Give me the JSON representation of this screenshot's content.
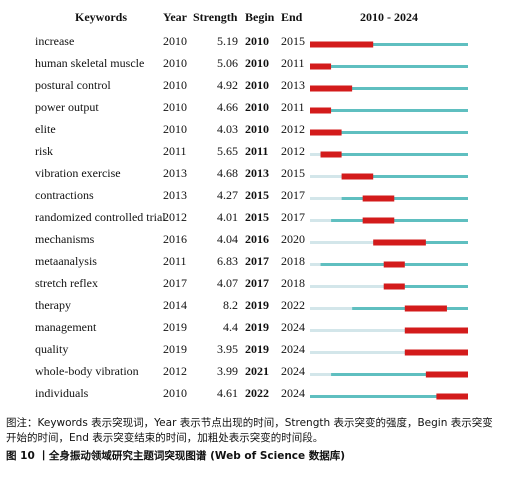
{
  "table": {
    "headers": [
      "Keywords",
      "Year",
      "Strength",
      "Begin",
      "End",
      "2010 - 2024"
    ],
    "range": [
      2010,
      2024
    ],
    "rows": [
      {
        "keyword": "increase",
        "year": 2010,
        "strength": 5.19,
        "begin": 2010,
        "end": 2015
      },
      {
        "keyword": "human skeletal muscle",
        "year": 2010,
        "strength": 5.06,
        "begin": 2010,
        "end": 2011
      },
      {
        "keyword": "postural control",
        "year": 2010,
        "strength": 4.92,
        "begin": 2010,
        "end": 2013
      },
      {
        "keyword": "power output",
        "year": 2010,
        "strength": 4.66,
        "begin": 2010,
        "end": 2011
      },
      {
        "keyword": "elite",
        "year": 2010,
        "strength": 4.03,
        "begin": 2010,
        "end": 2012
      },
      {
        "keyword": "risk",
        "year": 2011,
        "strength": 5.65,
        "begin": 2011,
        "end": 2012
      },
      {
        "keyword": "vibration exercise",
        "year": 2013,
        "strength": 4.68,
        "begin": 2013,
        "end": 2015
      },
      {
        "keyword": "contractions",
        "year": 2013,
        "strength": 4.27,
        "begin": 2015,
        "end": 2017
      },
      {
        "keyword": "randomized controlled trial",
        "year": 2012,
        "strength": 4.01,
        "begin": 2015,
        "end": 2017
      },
      {
        "keyword": "mechanisms",
        "year": 2016,
        "strength": 4.04,
        "begin": 2016,
        "end": 2020
      },
      {
        "keyword": "metaanalysis",
        "year": 2011,
        "strength": 6.83,
        "begin": 2017,
        "end": 2018
      },
      {
        "keyword": "stretch reflex",
        "year": 2017,
        "strength": 4.07,
        "begin": 2017,
        "end": 2018
      },
      {
        "keyword": "therapy",
        "year": 2014,
        "strength": 8.2,
        "begin": 2019,
        "end": 2022
      },
      {
        "keyword": "management",
        "year": 2019,
        "strength": 4.4,
        "begin": 2019,
        "end": 2024
      },
      {
        "keyword": "quality",
        "year": 2019,
        "strength": 3.95,
        "begin": 2019,
        "end": 2024
      },
      {
        "keyword": "whole-body vibration",
        "year": 2012,
        "strength": 3.99,
        "begin": 2021,
        "end": 2024
      },
      {
        "keyword": "individuals",
        "year": 2010,
        "strength": 4.61,
        "begin": 2022,
        "end": 2024
      }
    ]
  },
  "caption": {
    "note": "图注：Keywords 表示突现词，Year 表示节点出现的时间，Strength 表示突变的强度，Begin 表示突变开始的时间，End 表示突变结束的时间，加粗处表示突变的时间段。",
    "title": "图 10 丨全身振动领域研究主题词突现图谱 (Web of Science 数据库)"
  }
}
